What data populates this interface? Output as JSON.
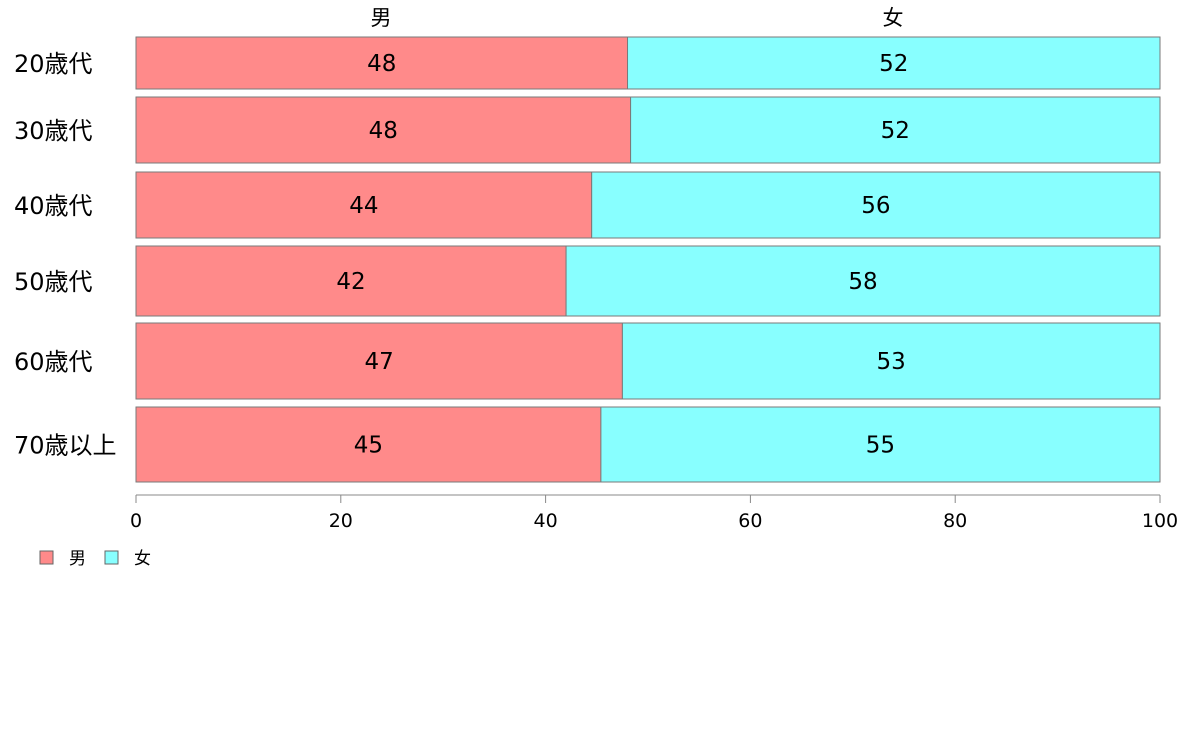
{
  "chart_data": {
    "type": "bar",
    "orientation": "horizontal",
    "stacked": true,
    "categories": [
      "20歳代",
      "30歳代",
      "40歳代",
      "50歳代",
      "60歳代",
      "70歳以上"
    ],
    "series": [
      {
        "name": "男",
        "values": [
          48,
          48.3,
          44.5,
          42,
          47.5,
          45.4
        ],
        "labels": [
          "48",
          "48",
          "44",
          "42",
          "47",
          "45"
        ],
        "color": "#ff8a8a"
      },
      {
        "name": "女",
        "values": [
          52,
          51.7,
          55.5,
          58,
          52.5,
          54.6
        ],
        "labels": [
          "52",
          "52",
          "56",
          "58",
          "53",
          "55"
        ],
        "color": "#88ffff"
      }
    ],
    "xlim": [
      0,
      100
    ],
    "xticks": [
      "0",
      "20",
      "40",
      "60",
      "80",
      "100"
    ],
    "grid": false,
    "legend_position": "bottom-left"
  }
}
